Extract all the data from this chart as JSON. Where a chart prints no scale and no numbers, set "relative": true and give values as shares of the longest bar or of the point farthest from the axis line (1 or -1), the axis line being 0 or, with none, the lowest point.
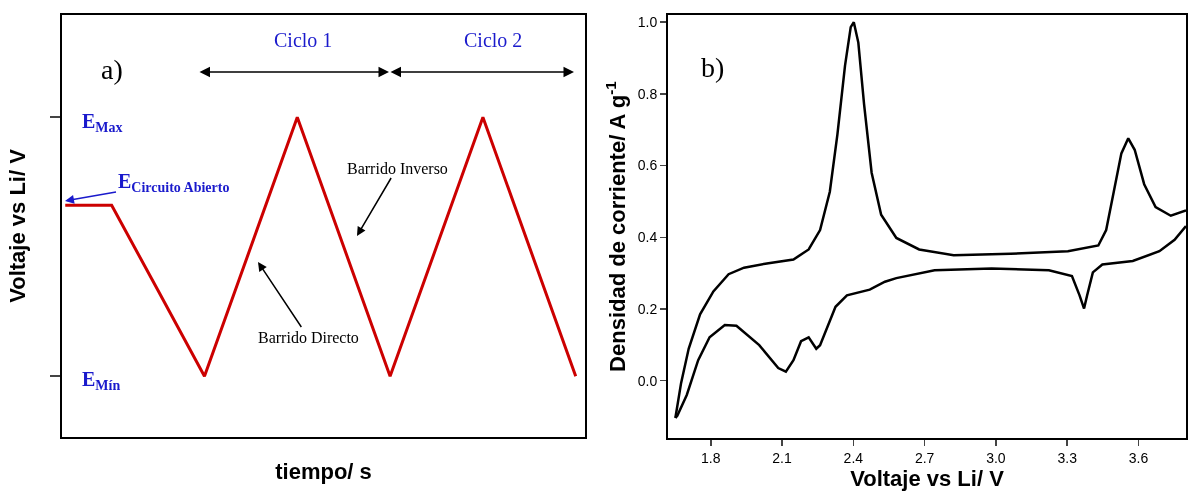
{
  "chart_data": [
    {
      "type": "line",
      "relative": true,
      "xlabel": "tiempo/ s",
      "ylabel": "Voltaje vs Li/ V",
      "tick_labels": false,
      "categories": [
        null,
        null,
        null,
        null,
        null,
        null,
        null,
        null,
        null,
        null,
        null,
        null
      ],
      "series": [
        {
          "color": "#cc0000",
          "values": [
            0.725,
            0.725,
            0.458,
            0.19,
            0.595,
            1,
            0.595,
            0.19,
            0.595,
            1,
            0.595,
            0.19
          ]
        }
      ],
      "annotations": [
        "a)",
        "Ciclo 1",
        "Ciclo 2",
        "E$_{Max}$",
        "E$_{Circuito Abierto}$",
        "E$_{Mín}$",
        "Barrido Inverso",
        "Barrido Directo"
      ]
    },
    {
      "type": "line",
      "xlabel": "Voltaje vs Li/ V",
      "ylabel": "Densidad de corriente/ A g$^{-1}$",
      "xlim": [
        1.62,
        3.8
      ],
      "ylim": [
        -0.16,
        1.02
      ],
      "xticks": [
        1.8,
        2.1,
        2.4,
        2.7,
        {
          "value": 3,
          "label": "3.0"
        },
        3.3,
        3.6
      ],
      "yticks": [
        {
          "value": 0,
          "label": "0.0"
        },
        0.2,
        0.4,
        0.6,
        0.8,
        {
          "value": 1,
          "label": "1.0"
        }
      ],
      "series": [
        {
          "color": "#000000",
          "x": [
            1.651,
            1.675,
            1.707,
            1.755,
            1.811,
            1.875,
            1.94,
            2.036,
            2.148,
            2.212,
            2.26,
            2.301,
            2.333,
            2.365,
            2.389,
            2.402,
            2.421,
            2.445,
            2.477,
            2.517,
            2.581,
            2.677,
            2.822,
            3.062,
            3.303,
            3.431,
            3.464,
            3.496,
            3.528,
            3.557,
            3.584,
            3.624,
            3.672,
            3.736,
            3.8
          ],
          "values": [
            -0.104,
            -0.007,
            0.089,
            0.185,
            0.249,
            0.297,
            0.315,
            0.327,
            0.338,
            0.366,
            0.42,
            0.527,
            0.687,
            0.879,
            0.986,
            1.0,
            0.943,
            0.772,
            0.58,
            0.463,
            0.398,
            0.366,
            0.35,
            0.354,
            0.361,
            0.377,
            0.42,
            0.527,
            0.634,
            0.676,
            0.644,
            0.548,
            0.484,
            0.46,
            0.475
          ]
        },
        {
          "color": "#000000",
          "x": [
            1.651,
            1.659,
            1.699,
            1.747,
            1.795,
            1.859,
            1.908,
            2.004,
            2.084,
            2.116,
            2.148,
            2.18,
            2.212,
            2.244,
            2.26,
            2.325,
            2.373,
            2.469,
            2.533,
            2.581,
            2.742,
            2.982,
            3.223,
            3.32,
            3.352,
            3.371,
            3.384,
            3.408,
            3.448,
            3.576,
            3.688,
            3.752,
            3.8
          ],
          "values": [
            -0.104,
            -0.098,
            -0.04,
            0.057,
            0.121,
            0.155,
            0.153,
            0.099,
            0.035,
            0.025,
            0.057,
            0.11,
            0.121,
            0.089,
            0.099,
            0.206,
            0.238,
            0.254,
            0.276,
            0.286,
            0.308,
            0.313,
            0.308,
            0.292,
            0.238,
            0.201,
            0.238,
            0.302,
            0.324,
            0.334,
            0.361,
            0.393,
            0.431
          ]
        }
      ],
      "annotations": [
        "b)"
      ]
    }
  ]
}
